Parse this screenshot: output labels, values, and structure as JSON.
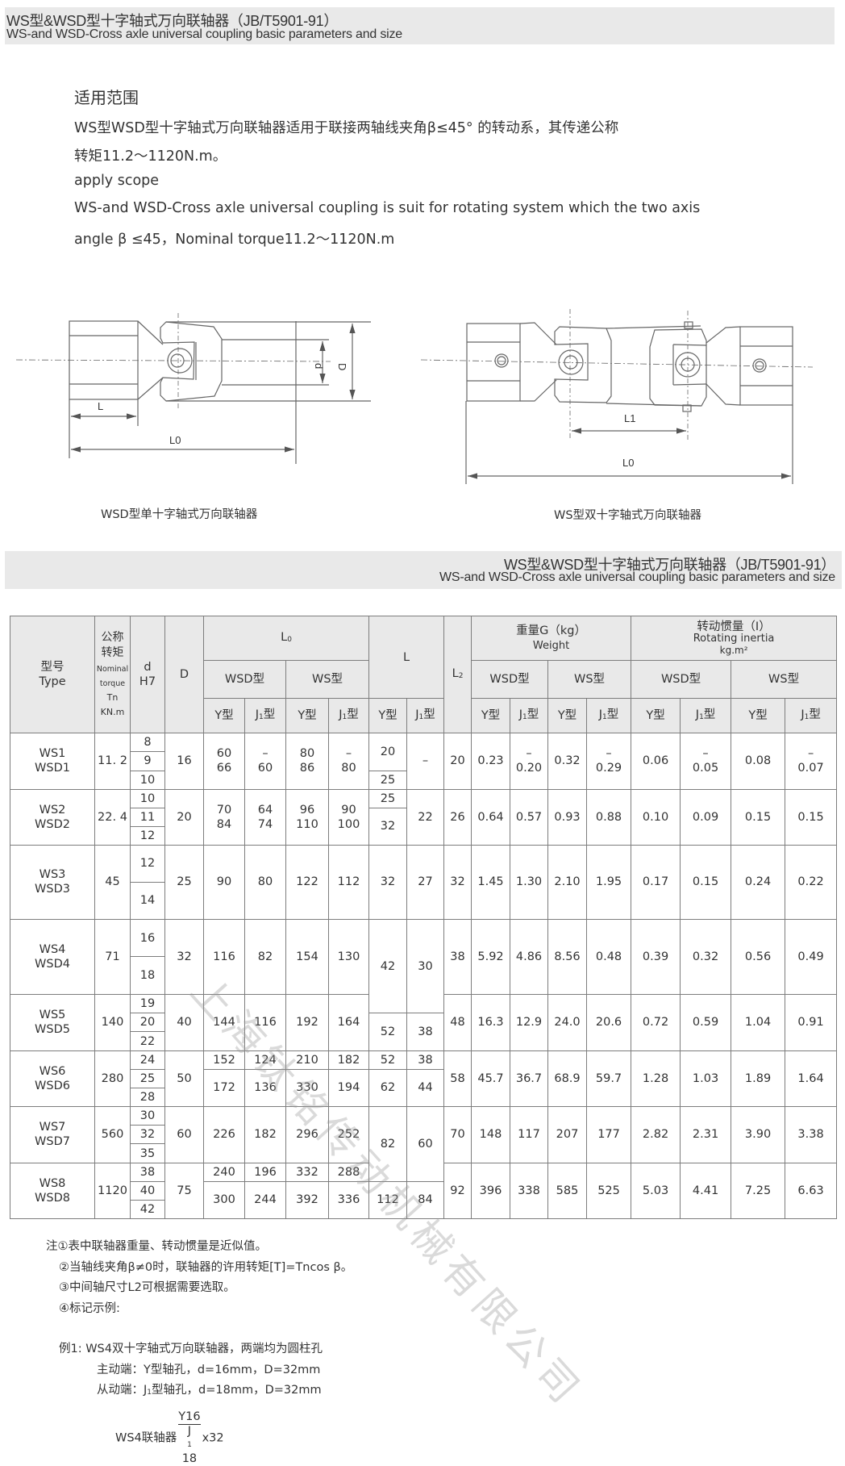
{
  "header": {
    "title_cn": "WS型&WSD型十字轴式万向联轴器（JB/T5901-91）",
    "title_en": "WS-and WSD-Cross axle universal coupling basic parameters and size"
  },
  "scope": {
    "heading": "适用范围",
    "cn_line1": "WS型WSD型十字轴式万向联轴器适用于联接两轴线夹角β≤45° 的转动系，其传递公称",
    "cn_line2": "转矩11.2～1120N.m。",
    "en_heading": "apply scope",
    "en_line1": "WS-and WSD-Cross axle universal coupling is suit for rotating system which the two axis",
    "en_line2": "angle β ≤45，Nominal torque11.2～1120N.m"
  },
  "diagrams": {
    "single": {
      "caption": "WSD型单十字轴式万向联轴器",
      "label_L": "L",
      "label_L0": "L0",
      "label_d": "d",
      "label_D": "D"
    },
    "double": {
      "caption": "WS型双十字轴式万向联轴器",
      "label_L1": "L1",
      "label_L0": "L0"
    }
  },
  "table_header": {
    "title_cn": "WS型&WSD型十字轴式万向联轴器（JB/T5901-91）",
    "title_en": "WS-and WSD-Cross axle universal coupling basic parameters and size"
  },
  "table": {
    "columns": {
      "type_cn": "型号",
      "type_en": "Type",
      "torque_cn": "公称\n转矩",
      "torque_en": "Nominal\ntorque",
      "torque_unit": "Tn\nKN.m",
      "d": "d\nH7",
      "D": "D",
      "lo_main": "L",
      "lo_sub": "0",
      "l": "L",
      "l2_main": "L",
      "l2_sub": "2",
      "weight_cn": "重量G（kg）",
      "weight_en": "Weight",
      "inertia_cn": "转动惯量（I）",
      "inertia_en": "Rotating  inertia",
      "inertia_unit": "kg.m²",
      "wsd": "WSD型",
      "ws": "WS型",
      "y": "Y型",
      "j1_prefix": "J",
      "j1_sub": "1",
      "j1_suffix": "型"
    },
    "rows": [
      {
        "type": "WS1\nWSD1",
        "torque": "11. 2",
        "d": [
          "8",
          "9",
          "10"
        ],
        "D": "16",
        "lo": [
          [
            "60\n66",
            "–\n60",
            "80\n86",
            "–\n80"
          ]
        ],
        "l_y": [
          "20",
          "25"
        ],
        "l_j1": [
          "–"
        ],
        "l2": "20",
        "weight": [
          "0.23",
          "–\n0.20",
          "0.32",
          "–\n0.29"
        ],
        "inertia": [
          "0.06",
          "–\n0.05",
          "0.08",
          "–\n0.07"
        ]
      },
      {
        "type": "WS2\nWSD2",
        "torque": "22. 4",
        "d": [
          "10",
          "11",
          "12"
        ],
        "D": "20",
        "lo": [
          [
            "70\n84",
            "64\n74",
            "96\n110",
            "90\n100"
          ]
        ],
        "l_y": [
          "25",
          "32"
        ],
        "l_j1": [
          "22"
        ],
        "l2": "26",
        "weight": [
          "0.64",
          "0.57",
          "0.93",
          "0.88"
        ],
        "inertia": [
          "0.10",
          "0.09",
          "0.15",
          "0.15"
        ]
      },
      {
        "type": "WS3\nWSD3",
        "torque": "45",
        "d": [
          "12",
          "14"
        ],
        "D": "25",
        "lo": [
          [
            "90",
            "80",
            "122",
            "112"
          ]
        ],
        "l_y": [
          "32"
        ],
        "l_j1": [
          "27"
        ],
        "l2": "32",
        "weight": [
          "1.45",
          "1.30",
          "2.10",
          "1.95"
        ],
        "inertia": [
          "0.17",
          "0.15",
          "0.24",
          "0.22"
        ]
      },
      {
        "type": "WS4\nWSD4",
        "torque": "71",
        "d": [
          "16",
          "18"
        ],
        "D": "32",
        "lo": [
          [
            "116",
            "82",
            "154",
            "130"
          ]
        ],
        "l_y": [
          "42"
        ],
        "l_j1": [
          "30"
        ],
        "l2": "38",
        "weight": [
          "5.92",
          "4.86",
          "8.56",
          "0.48"
        ],
        "inertia": [
          "0.39",
          "0.32",
          "0.56",
          "0.49"
        ]
      },
      {
        "type": "WS5\nWSD5",
        "torque": "140",
        "d": [
          "19",
          "20",
          "22"
        ],
        "D": "40",
        "lo": [
          [
            "144",
            "116",
            "192",
            "164"
          ]
        ],
        "l_y": [
          "52"
        ],
        "l_j1": [
          "38"
        ],
        "l2": "48",
        "weight": [
          "16.3",
          "12.9",
          "24.0",
          "20.6"
        ],
        "inertia": [
          "0.72",
          "0.59",
          "1.04",
          "0.91"
        ]
      },
      {
        "type": "WS6\nWSD6",
        "torque": "280",
        "d": [
          "24",
          "25",
          "28"
        ],
        "D": "50",
        "lo": [
          [
            "152",
            "124",
            "210",
            "182"
          ],
          [
            "172",
            "136",
            "330",
            "194"
          ]
        ],
        "l_y": [
          "52",
          "62"
        ],
        "l_j1": [
          "38",
          "44"
        ],
        "l2": "58",
        "weight": [
          "45.7",
          "36.7",
          "68.9",
          "59.7"
        ],
        "inertia": [
          "1.28",
          "1.03",
          "1.89",
          "1.64"
        ]
      },
      {
        "type": "WS7\nWSD7",
        "torque": "560",
        "d": [
          "30",
          "32",
          "35"
        ],
        "D": "60",
        "lo": [
          [
            "226",
            "182",
            "296",
            "252"
          ]
        ],
        "l_y": [
          "82"
        ],
        "l_j1": [
          "60"
        ],
        "l2": "70",
        "weight": [
          "148",
          "117",
          "207",
          "177"
        ],
        "inertia": [
          "2.82",
          "2.31",
          "3.90",
          "3.38"
        ]
      },
      {
        "type": "WS8\nWSD8",
        "torque": "1120",
        "d": [
          "38",
          "40",
          "42"
        ],
        "D": "75",
        "lo": [
          [
            "240",
            "196",
            "332",
            "288"
          ],
          [
            "300",
            "244",
            "392",
            "336"
          ]
        ],
        "l_y": [
          "112"
        ],
        "l_j1": [
          "84"
        ],
        "l2": "92",
        "weight": [
          "396",
          "338",
          "585",
          "525"
        ],
        "inertia": [
          "5.03",
          "4.41",
          "7.25",
          "6.63"
        ]
      }
    ]
  },
  "notes": {
    "n1": "注①表中联轴器重量、转动惯量是近似值。",
    "n2": "②当轴线夹角β≠0时，联轴器的许用转矩[T]=Tncos β。",
    "n3": "③中间轴尺寸L2可根据需要选取。",
    "n4": "④标记示例:",
    "ex_title": "例1:  WS4双十字轴式万向联轴器，两端均为圆柱孔",
    "ex_drive": "主动端：Y型轴孔，d=16mm，D=32mm",
    "ex_driven_prefix": "从动端：J",
    "ex_driven_sub": "1",
    "ex_driven_rest": "型轴孔，d=18mm，D=32mm",
    "formula_name": "WS4联轴器",
    "formula_num": "Y16",
    "formula_den_prefix": "J",
    "formula_den_sub": "1",
    "formula_den_rest": "18",
    "formula_suffix": "x32"
  },
  "watermark": "上海钛铭传动机械有限公司"
}
